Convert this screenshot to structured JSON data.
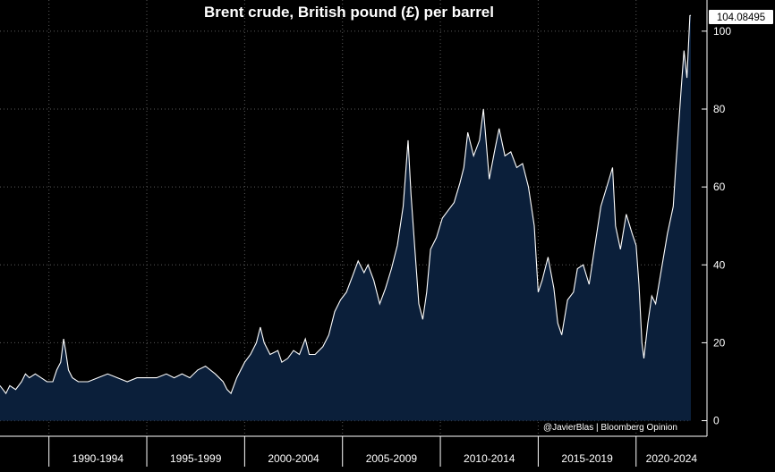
{
  "chart_data": {
    "type": "area",
    "title": "Brent crude, British pound (£) per barrel",
    "credit": "@JavierBlas | Bloomberg Opinion",
    "last_value_label": "104.08495",
    "ylim": [
      -4,
      108
    ],
    "xlim": [
      1987.5,
      2022.8
    ],
    "y_ticks": [
      0,
      20,
      40,
      60,
      80,
      100
    ],
    "y_tick_labels": [
      "0",
      "20",
      "40",
      "60",
      "80",
      "100"
    ],
    "x_categories": [
      "1990-1994",
      "1995-1999",
      "2000-2004",
      "2005-2009",
      "2010-2014",
      "2015-2019",
      "2020-2024"
    ],
    "x_boundaries": [
      1990,
      1995,
      2000,
      2005,
      2010,
      2015,
      2020
    ],
    "grid": true,
    "colors": {
      "background": "#000000",
      "fill": "#0b1f3a",
      "line": "#ffffff",
      "grid": "#5a5a5a",
      "axis": "#ffffff",
      "label_box": "#ffffff"
    },
    "series": [
      {
        "x": [
          1987.5,
          1987.8,
          1988.0,
          1988.3,
          1988.6,
          1988.8,
          1989.0,
          1989.3,
          1989.6,
          1989.9,
          1990.2,
          1990.4,
          1990.6,
          1990.75,
          1990.85,
          1991.0,
          1991.2,
          1991.5,
          1992.0,
          1992.5,
          1993.0,
          1993.5,
          1994.0,
          1994.5,
          1995.0,
          1995.5,
          1996.0,
          1996.4,
          1996.8,
          1997.2,
          1997.6,
          1998.0,
          1998.5,
          1998.9,
          1999.1,
          1999.3,
          1999.6,
          2000.0,
          2000.3,
          2000.6,
          2000.8,
          2001.0,
          2001.3,
          2001.7,
          2001.9,
          2002.2,
          2002.5,
          2002.8,
          2003.1,
          2003.3,
          2003.6,
          2004.0,
          2004.3,
          2004.6,
          2004.9,
          2005.2,
          2005.5,
          2005.8,
          2006.1,
          2006.3,
          2006.6,
          2006.9,
          2007.2,
          2007.5,
          2007.8,
          2008.1,
          2008.35,
          2008.5,
          2008.7,
          2008.9,
          2009.1,
          2009.3,
          2009.5,
          2009.8,
          2010.1,
          2010.4,
          2010.7,
          2011.0,
          2011.2,
          2011.4,
          2011.7,
          2012.0,
          2012.2,
          2012.5,
          2012.8,
          2013.0,
          2013.3,
          2013.6,
          2013.9,
          2014.2,
          2014.5,
          2014.8,
          2015.0,
          2015.2,
          2015.5,
          2015.8,
          2016.0,
          2016.2,
          2016.5,
          2016.8,
          2017.0,
          2017.3,
          2017.6,
          2017.9,
          2018.2,
          2018.5,
          2018.8,
          2018.95,
          2019.2,
          2019.5,
          2019.8,
          2020.0,
          2020.15,
          2020.3,
          2020.4,
          2020.6,
          2020.8,
          2021.0,
          2021.3,
          2021.6,
          2021.9,
          2022.0,
          2022.15,
          2022.3,
          2022.45,
          2022.6,
          2022.75,
          2022.8
        ],
        "y": [
          9,
          7,
          9,
          8,
          10,
          12,
          11,
          12,
          11,
          10,
          10,
          13,
          15,
          21,
          18,
          13,
          11,
          10,
          10,
          11,
          12,
          11,
          10,
          11,
          11,
          11,
          12,
          11,
          12,
          11,
          13,
          14,
          12,
          10,
          8,
          7,
          11,
          15,
          17,
          20,
          24,
          20,
          17,
          18,
          15,
          16,
          18,
          17,
          21,
          17,
          17,
          19,
          22,
          28,
          31,
          33,
          37,
          41,
          38,
          40,
          36,
          30,
          34,
          39,
          45,
          55,
          72,
          58,
          44,
          30,
          26,
          33,
          44,
          47,
          52,
          54,
          56,
          61,
          65,
          74,
          68,
          72,
          80,
          62,
          70,
          75,
          68,
          69,
          65,
          66,
          60,
          50,
          33,
          36,
          42,
          34,
          25,
          22,
          31,
          33,
          39,
          40,
          35,
          45,
          55,
          60,
          65,
          50,
          44,
          53,
          48,
          45,
          35,
          20,
          16,
          25,
          32,
          30,
          39,
          48,
          55,
          63,
          74,
          85,
          95,
          88,
          104,
          104.08
        ]
      }
    ]
  }
}
